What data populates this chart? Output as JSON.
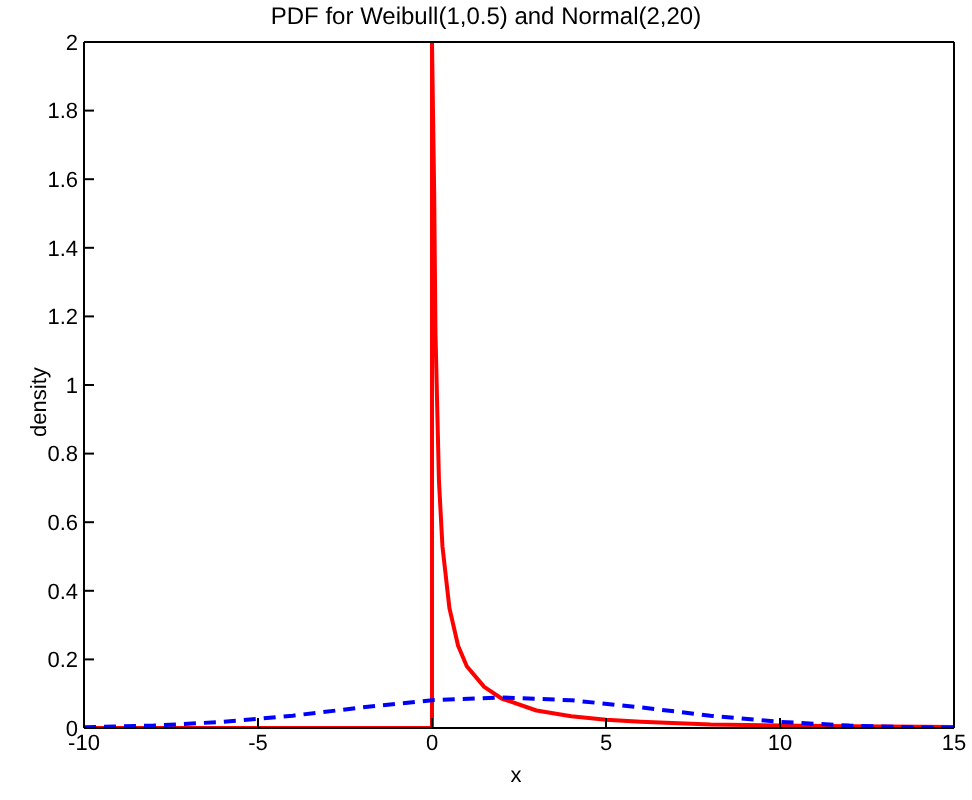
{
  "chart_data": {
    "type": "line",
    "title": "PDF for Weibull(1,0.5) and Normal(2,20)",
    "xlabel": "x",
    "ylabel": "density",
    "xlim": [
      -10,
      15
    ],
    "ylim": [
      0,
      2
    ],
    "xticks": [
      -10,
      -5,
      0,
      5,
      10,
      15
    ],
    "yticks": [
      0,
      0.2,
      0.4,
      0.6,
      0.8,
      1,
      1.2,
      1.4,
      1.6,
      1.8,
      2
    ],
    "marker": "none",
    "series": [
      {
        "color": "#ff0000",
        "line_style": "solid",
        "x": [
          -10,
          -5,
          0,
          0,
          0.0625,
          0.1,
          0.2,
          0.3,
          0.5,
          0.75,
          1,
          1.5,
          2,
          3,
          4,
          5,
          6,
          8,
          10,
          12,
          15
        ],
        "values": [
          0,
          0,
          0,
          2,
          1.56,
          1.15,
          0.72,
          0.53,
          0.35,
          0.24,
          0.18,
          0.12,
          0.086,
          0.051,
          0.034,
          0.024,
          0.018,
          0.01,
          0.007,
          0.005,
          0.003
        ]
      },
      {
        "color": "#0000ff",
        "line_style": "dashed",
        "x": [
          -10,
          -8,
          -6,
          -4,
          -2,
          0,
          2,
          4,
          6,
          8,
          10,
          12,
          14,
          15
        ],
        "values": [
          0.002,
          0.007,
          0.018,
          0.036,
          0.06,
          0.081,
          0.089,
          0.081,
          0.06,
          0.036,
          0.018,
          0.007,
          0.002,
          0.001
        ]
      }
    ]
  }
}
